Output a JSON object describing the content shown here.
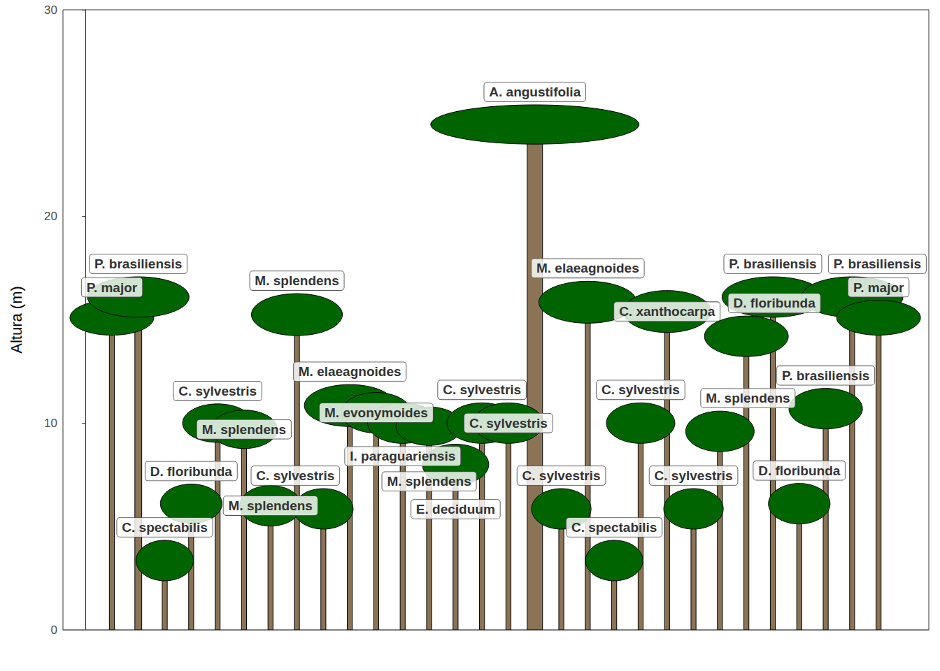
{
  "chart_data": {
    "type": "tree_profile",
    "y_label": "Altura (m)",
    "xlim": [
      -0.85,
      31.9
    ],
    "xticks": [],
    "ylim": [
      0,
      30
    ],
    "yticks": [
      0,
      10,
      20,
      30
    ],
    "grid": false,
    "tick_labels": "y",
    "color": {
      "trunk": "#8B7355",
      "crown": "#006400"
    },
    "trees": [
      {
        "x": 1,
        "label": "P. major",
        "height": 15.1,
        "crown_width": 3.17,
        "crown_height": 1.69,
        "trunk_width": 0.19
      },
      {
        "x": 2,
        "label": "P. brasiliensis",
        "height": 16.1,
        "crown_width": 3.84,
        "crown_height": 1.96,
        "trunk_width": 0.26
      },
      {
        "x": 3,
        "label": "C. spectabilis",
        "height": 3.35,
        "crown_width": 2.17,
        "crown_height": 1.96,
        "trunk_width": 0.19
      },
      {
        "x": 4,
        "label": "D. floribunda",
        "height": 6.1,
        "crown_width": 2.33,
        "crown_height": 1.9,
        "trunk_width": 0.19
      },
      {
        "x": 5,
        "label": "C. sylvestris",
        "height": 10.0,
        "crown_width": 2.65,
        "crown_height": 1.86,
        "trunk_width": 0.19
      },
      {
        "x": 6,
        "label": "M. splendens",
        "height": 9.7,
        "crown_width": 2.51,
        "crown_height": 1.86,
        "trunk_width": 0.19
      },
      {
        "x": 7,
        "label": "M. splendens",
        "height": 6.0,
        "crown_width": 2.33,
        "crown_height": 1.96,
        "trunk_width": 0.19
      },
      {
        "x": 8,
        "label": "M. splendens",
        "height": 15.25,
        "crown_width": 3.44,
        "crown_height": 2.03,
        "trunk_width": 0.19
      },
      {
        "x": 9,
        "label": "C. sylvestris",
        "height": 5.85,
        "crown_width": 2.25,
        "crown_height": 1.96,
        "trunk_width": 0.19
      },
      {
        "x": 10,
        "label": "M. elaeagnoides",
        "height": 10.85,
        "crown_width": 3.44,
        "crown_height": 2.03,
        "trunk_width": 0.19
      },
      {
        "x": 11,
        "label": "M. evonymoides",
        "height": 10.5,
        "crown_width": 2.65,
        "crown_height": 1.96,
        "trunk_width": 0.19
      },
      {
        "x": 12,
        "label": "I. paraguariensis",
        "height": 10.0,
        "crown_width": 2.65,
        "crown_height": 1.96,
        "trunk_width": 0.19
      },
      {
        "x": 13,
        "label": "M. splendens",
        "height": 9.85,
        "crown_width": 2.51,
        "crown_height": 1.86,
        "trunk_width": 0.19
      },
      {
        "x": 14,
        "label": "E. deciduum",
        "height": 8.0,
        "crown_width": 2.51,
        "crown_height": 1.96,
        "trunk_width": 0.19
      },
      {
        "x": 15,
        "label": "C. sylvestris",
        "height": 10.0,
        "crown_width": 2.65,
        "crown_height": 1.96,
        "trunk_width": 0.19
      },
      {
        "x": 16,
        "label": "C. sylvestris",
        "height": 10.0,
        "crown_width": 2.65,
        "crown_height": 1.96,
        "trunk_width": 0.19
      },
      {
        "x": 17,
        "label": "A. angustifolia",
        "height": 24.45,
        "crown_width": 7.88,
        "crown_height": 1.9,
        "trunk_width": 0.58
      },
      {
        "x": 18,
        "label": "C. sylvestris",
        "height": 5.85,
        "crown_width": 2.25,
        "crown_height": 1.96,
        "trunk_width": 0.19
      },
      {
        "x": 19,
        "label": "M. elaeagnoides",
        "height": 15.85,
        "crown_width": 3.7,
        "crown_height": 2.03,
        "trunk_width": 0.19
      },
      {
        "x": 20,
        "label": "C. spectabilis",
        "height": 3.35,
        "crown_width": 2.17,
        "crown_height": 1.96,
        "trunk_width": 0.19
      },
      {
        "x": 21,
        "label": "C. sylvestris",
        "height": 10.0,
        "crown_width": 2.59,
        "crown_height": 1.96,
        "trunk_width": 0.19
      },
      {
        "x": 22,
        "label": "C. xanthocarpa",
        "height": 15.4,
        "crown_width": 3.31,
        "crown_height": 2.03,
        "trunk_width": 0.19
      },
      {
        "x": 23,
        "label": "C. sylvestris",
        "height": 5.85,
        "crown_width": 2.25,
        "crown_height": 1.96,
        "trunk_width": 0.19
      },
      {
        "x": 24,
        "label": "M. splendens",
        "height": 9.6,
        "crown_width": 2.59,
        "crown_height": 1.96,
        "trunk_width": 0.19
      },
      {
        "x": 25,
        "label": "D. floribunda",
        "height": 14.2,
        "crown_width": 3.17,
        "crown_height": 1.96,
        "trunk_width": 0.19
      },
      {
        "x": 26,
        "label": "P. brasiliensis",
        "height": 16.1,
        "crown_width": 3.84,
        "crown_height": 1.96,
        "trunk_width": 0.19
      },
      {
        "x": 27,
        "label": "D. floribunda",
        "height": 6.1,
        "crown_width": 2.33,
        "crown_height": 1.96,
        "trunk_width": 0.19
      },
      {
        "x": 28,
        "label": "P. brasiliensis",
        "height": 10.7,
        "crown_width": 2.78,
        "crown_height": 1.96,
        "trunk_width": 0.19
      },
      {
        "x": 29,
        "label": "P. brasiliensis",
        "height": 16.1,
        "crown_width": 3.84,
        "crown_height": 1.96,
        "trunk_width": 0.19
      },
      {
        "x": 30,
        "label": "P. major",
        "height": 15.1,
        "crown_width": 3.17,
        "crown_height": 1.69,
        "trunk_width": 0.19
      }
    ]
  }
}
